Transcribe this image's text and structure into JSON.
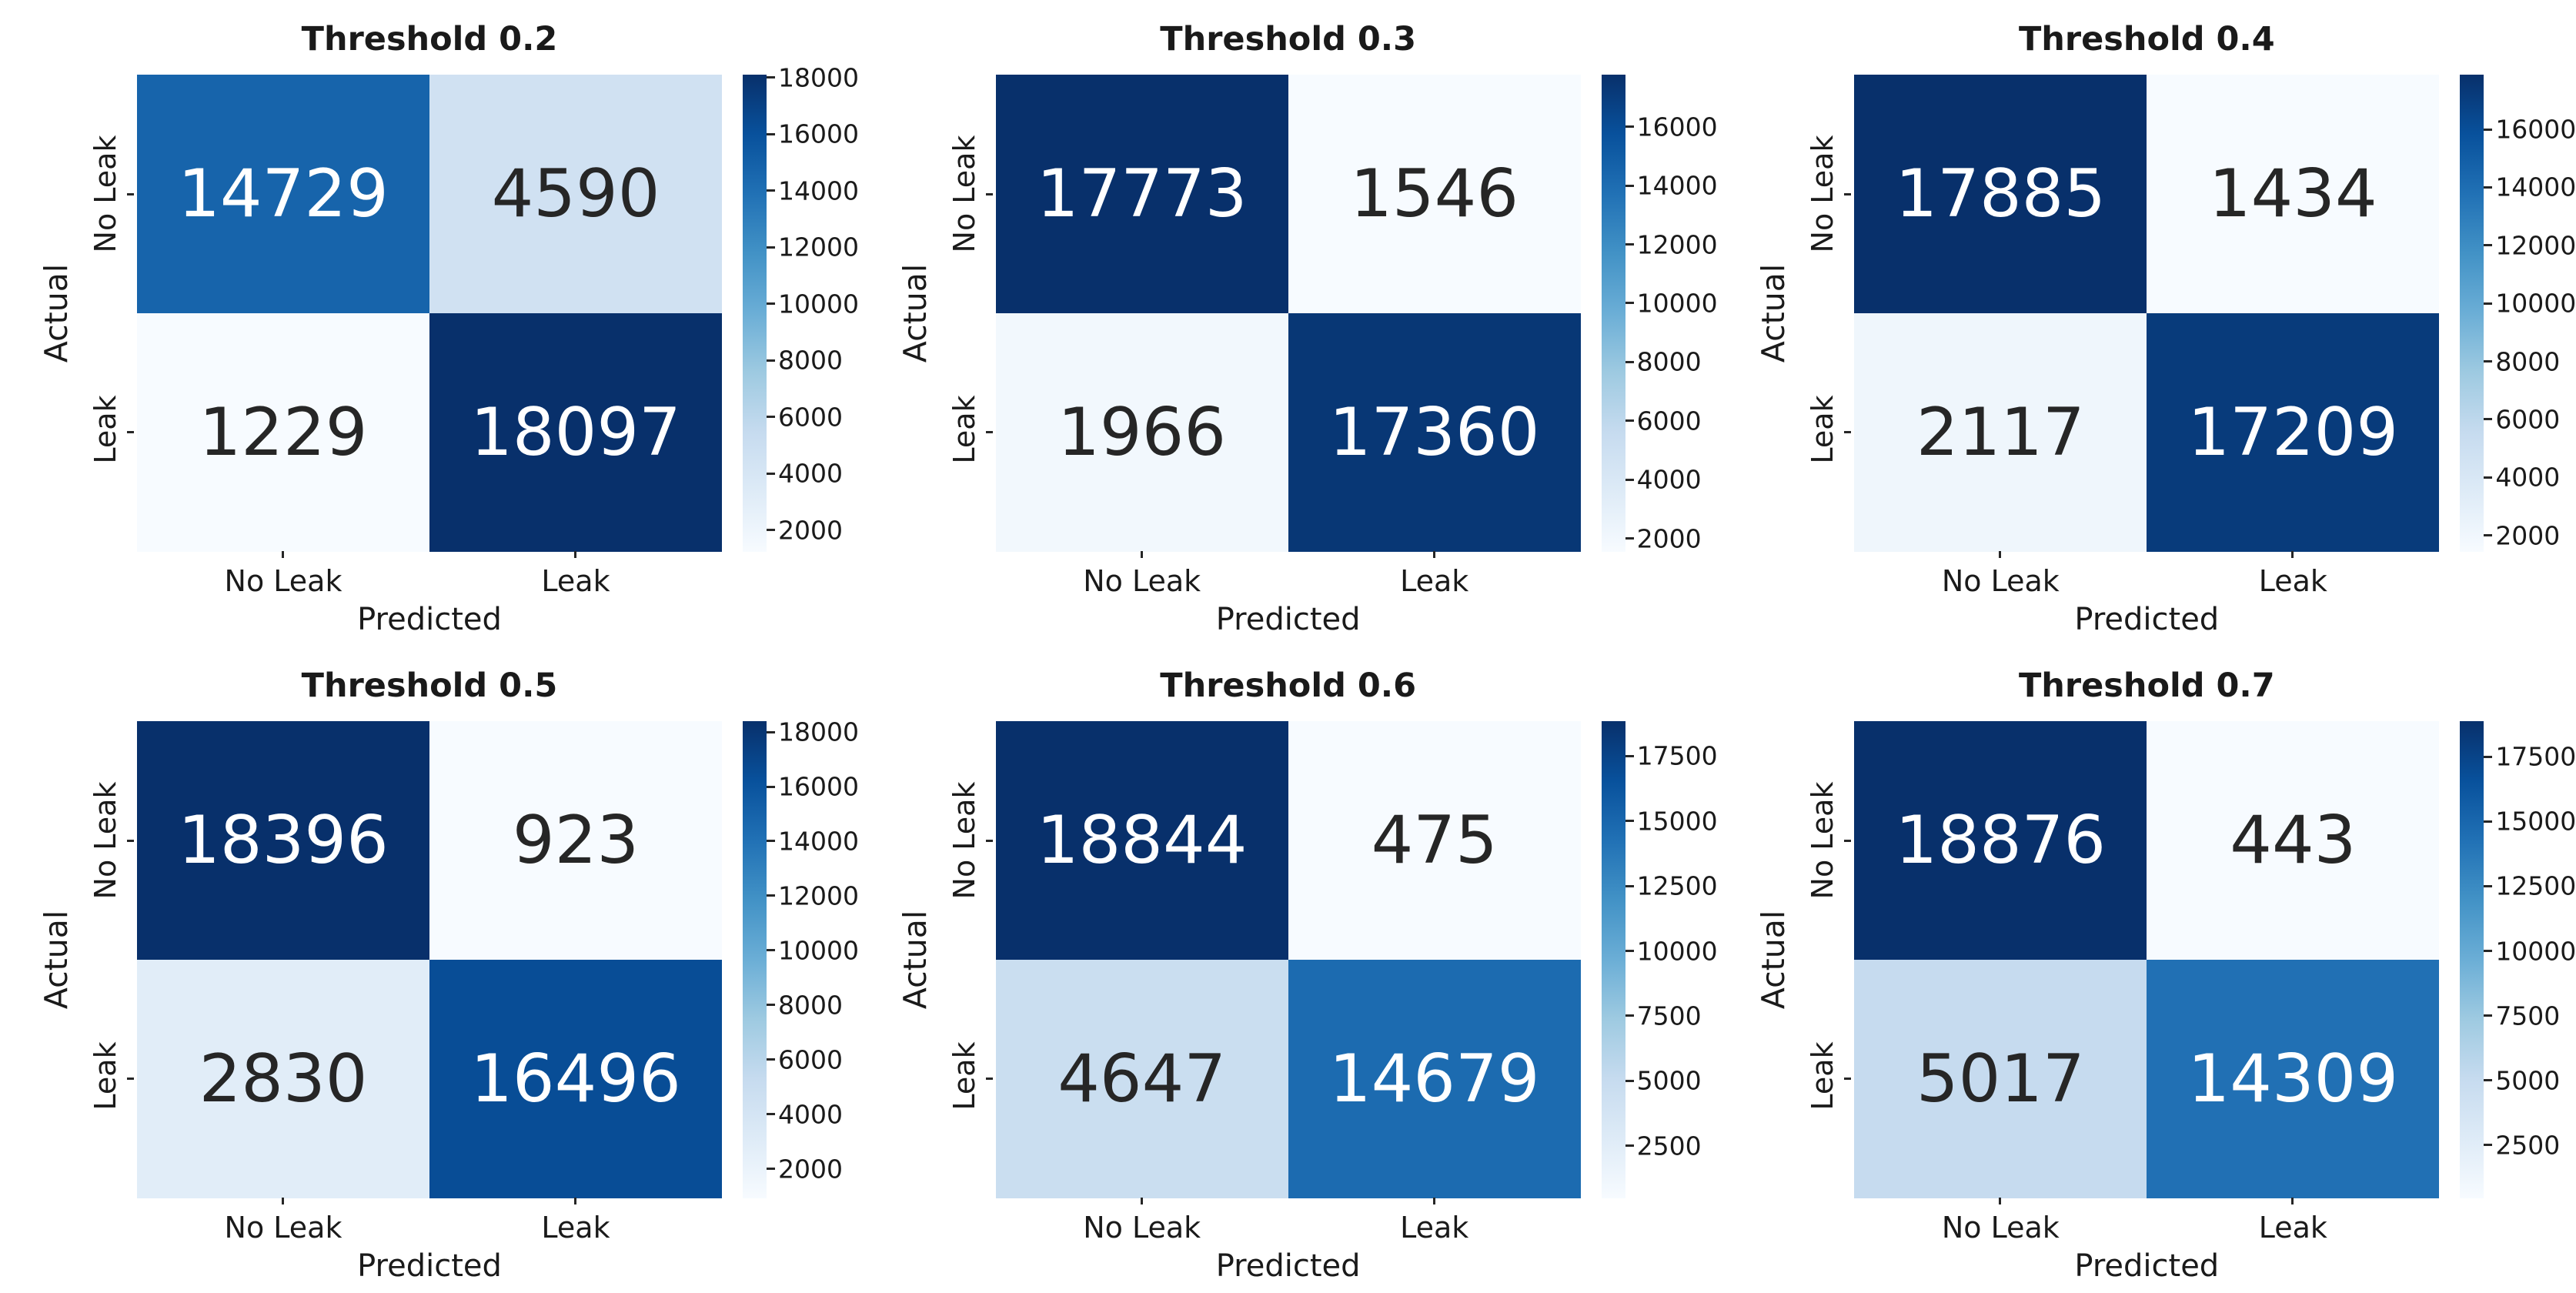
{
  "figure": {
    "background": "#ffffff",
    "colormap_name": "Blues",
    "colormap_stops": [
      "#f7fbff",
      "#deebf7",
      "#c6dbef",
      "#9ecae1",
      "#6baed6",
      "#4292c6",
      "#2171b5",
      "#08519c",
      "#08306b"
    ],
    "dark_text_color": "#262626",
    "light_text_color": "#ffffff"
  },
  "chart_data": [
    {
      "type": "heatmap",
      "title": "Threshold 0.2",
      "xlabel": "Predicted",
      "ylabel": "Actual",
      "x_tick_labels": [
        "No Leak",
        "Leak"
      ],
      "y_tick_labels": [
        "No Leak",
        "Leak"
      ],
      "matrix": [
        [
          14729,
          4590
        ],
        [
          1229,
          18097
        ]
      ],
      "vmin": 1229,
      "vmax": 18097,
      "colorbar_ticks": [
        2000,
        4000,
        6000,
        8000,
        10000,
        12000,
        14000,
        16000,
        18000
      ],
      "cell_colors": [
        [
          "#1764ab",
          "#d0e1f2"
        ],
        [
          "#f7fbff",
          "#08306b"
        ]
      ],
      "cell_text_colors": [
        [
          "#ffffff",
          "#262626"
        ],
        [
          "#262626",
          "#ffffff"
        ]
      ]
    },
    {
      "type": "heatmap",
      "title": "Threshold 0.3",
      "xlabel": "Predicted",
      "ylabel": "Actual",
      "x_tick_labels": [
        "No Leak",
        "Leak"
      ],
      "y_tick_labels": [
        "No Leak",
        "Leak"
      ],
      "matrix": [
        [
          17773,
          1546
        ],
        [
          1966,
          17360
        ]
      ],
      "vmin": 1546,
      "vmax": 17773,
      "colorbar_ticks": [
        2000,
        4000,
        6000,
        8000,
        10000,
        12000,
        14000,
        16000
      ],
      "cell_colors": [
        [
          "#08306b",
          "#f7fbff"
        ],
        [
          "#f2f8fd",
          "#083775"
        ]
      ],
      "cell_text_colors": [
        [
          "#ffffff",
          "#262626"
        ],
        [
          "#262626",
          "#ffffff"
        ]
      ]
    },
    {
      "type": "heatmap",
      "title": "Threshold 0.4",
      "xlabel": "Predicted",
      "ylabel": "Actual",
      "x_tick_labels": [
        "No Leak",
        "Leak"
      ],
      "y_tick_labels": [
        "No Leak",
        "Leak"
      ],
      "matrix": [
        [
          17885,
          1434
        ],
        [
          2117,
          17209
        ]
      ],
      "vmin": 1434,
      "vmax": 17885,
      "colorbar_ticks": [
        2000,
        4000,
        6000,
        8000,
        10000,
        12000,
        14000,
        16000
      ],
      "cell_colors": [
        [
          "#08306b",
          "#f7fbff"
        ],
        [
          "#eff6fc",
          "#083b7b"
        ]
      ],
      "cell_text_colors": [
        [
          "#ffffff",
          "#262626"
        ],
        [
          "#262626",
          "#ffffff"
        ]
      ]
    },
    {
      "type": "heatmap",
      "title": "Threshold 0.5",
      "xlabel": "Predicted",
      "ylabel": "Actual",
      "x_tick_labels": [
        "No Leak",
        "Leak"
      ],
      "y_tick_labels": [
        "No Leak",
        "Leak"
      ],
      "matrix": [
        [
          18396,
          923
        ],
        [
          2830,
          16496
        ]
      ],
      "vmin": 923,
      "vmax": 18396,
      "colorbar_ticks": [
        2000,
        4000,
        6000,
        8000,
        10000,
        12000,
        14000,
        16000,
        18000
      ],
      "cell_colors": [
        [
          "#08306b",
          "#f7fbff"
        ],
        [
          "#e1edf8",
          "#084d96"
        ]
      ],
      "cell_text_colors": [
        [
          "#ffffff",
          "#262626"
        ],
        [
          "#262626",
          "#ffffff"
        ]
      ]
    },
    {
      "type": "heatmap",
      "title": "Threshold 0.6",
      "xlabel": "Predicted",
      "ylabel": "Actual",
      "x_tick_labels": [
        "No Leak",
        "Leak"
      ],
      "y_tick_labels": [
        "No Leak",
        "Leak"
      ],
      "matrix": [
        [
          18844,
          475
        ],
        [
          4647,
          14679
        ]
      ],
      "vmin": 475,
      "vmax": 18844,
      "colorbar_ticks": [
        2500,
        5000,
        7500,
        10000,
        12500,
        15000,
        17500
      ],
      "cell_colors": [
        [
          "#08306b",
          "#f7fbff"
        ],
        [
          "#cadef0",
          "#1c6bb0"
        ]
      ],
      "cell_text_colors": [
        [
          "#ffffff",
          "#262626"
        ],
        [
          "#262626",
          "#ffffff"
        ]
      ]
    },
    {
      "type": "heatmap",
      "title": "Threshold 0.7",
      "xlabel": "Predicted",
      "ylabel": "Actual",
      "x_tick_labels": [
        "No Leak",
        "Leak"
      ],
      "y_tick_labels": [
        "No Leak",
        "Leak"
      ],
      "matrix": [
        [
          18876,
          443
        ],
        [
          5017,
          14309
        ]
      ],
      "vmin": 443,
      "vmax": 18876,
      "colorbar_ticks": [
        2500,
        5000,
        7500,
        10000,
        12500,
        15000,
        17500
      ],
      "cell_colors": [
        [
          "#08306b",
          "#f7fbff"
        ],
        [
          "#c6dbef",
          "#2170b4"
        ]
      ],
      "cell_text_colors": [
        [
          "#ffffff",
          "#262626"
        ],
        [
          "#262626",
          "#ffffff"
        ]
      ]
    }
  ]
}
